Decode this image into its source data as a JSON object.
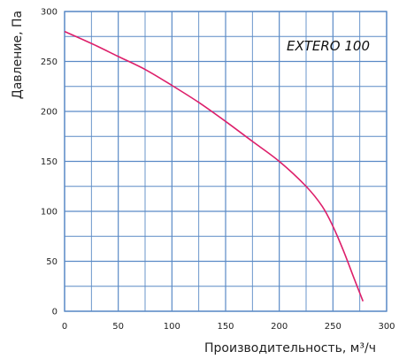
{
  "chart_data": {
    "type": "line",
    "ylabel": "Давление, Па",
    "xlabel": "Производительность, м³/ч",
    "series": [
      {
        "name": "EXTERO 100",
        "x": [
          0,
          25,
          50,
          75,
          100,
          125,
          150,
          175,
          200,
          225,
          240,
          250,
          260,
          270,
          278
        ],
        "y": [
          280,
          268,
          255,
          242,
          226,
          209,
          190,
          170,
          150,
          125,
          105,
          85,
          60,
          32,
          10
        ]
      }
    ],
    "xlim": [
      0,
      300
    ],
    "ylim": [
      0,
      300
    ],
    "x_ticks": [
      "0",
      "50",
      "100",
      "150",
      "200",
      "250",
      "300"
    ],
    "y_ticks": [
      "0",
      "50",
      "100",
      "150",
      "200",
      "250",
      "300"
    ],
    "grid": true,
    "colors": {
      "line": "#dd1f6a",
      "grid": "#5a8ac6"
    }
  }
}
